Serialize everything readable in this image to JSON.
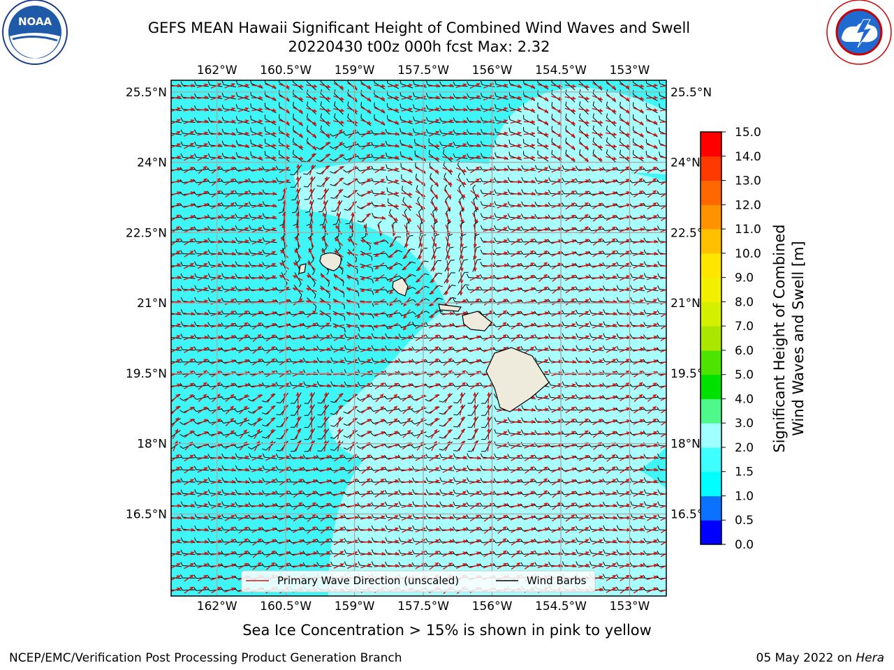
{
  "title_line1": "GEFS MEAN Hawaii Significant Height of Combined Wind Waves and Swell",
  "title_line2": "20220430 t00z 000h fcst   Max: 2.32",
  "lon_ticks": [
    "162°W",
    "160.5°W",
    "159°W",
    "157.5°W",
    "156°W",
    "154.5°W",
    "153°W"
  ],
  "lat_ticks": [
    "25.5°N",
    "24°N",
    "22.5°N",
    "21°N",
    "19.5°N",
    "18°N",
    "16.5°N"
  ],
  "lon_values": [
    -162,
    -160.5,
    -159,
    -157.5,
    -156,
    -154.5,
    -153
  ],
  "lat_values": [
    25.5,
    24,
    22.5,
    21,
    19.5,
    18,
    16.5
  ],
  "map_extent": {
    "lon": [
      -163,
      -152.2
    ],
    "lat": [
      14.75,
      25.75
    ]
  },
  "legend": {
    "wave_dir_label": "Primary Wave Direction (unscaled)",
    "wave_dir_color": "#dd1111",
    "wind_barbs_label": "Wind Barbs",
    "wind_barbs_color": "#000000"
  },
  "colorbar": {
    "label_line1": "Significant Height of Combined",
    "label_line2": "Wind Waves and Swell [m]",
    "levels": [
      0.0,
      0.5,
      1.0,
      1.5,
      2.0,
      3.0,
      4.0,
      5.0,
      6.0,
      7.0,
      8.0,
      9.0,
      10.0,
      11.0,
      12.0,
      13.0,
      14.0,
      15.0
    ],
    "level_labels": [
      "0.0",
      "0.5",
      "1.0",
      "1.5",
      "2.0",
      "3.0",
      "4.0",
      "5.0",
      "6.0",
      "7.0",
      "8.0",
      "9.0",
      "10.0",
      "11.0",
      "12.0",
      "13.0",
      "14.0",
      "15.0"
    ],
    "colors": [
      "#0000ff",
      "#0a72ff",
      "#00ffff",
      "#40ffff",
      "#a0ffff",
      "#4ff88a",
      "#00e100",
      "#4ee400",
      "#aae600",
      "#d4f000",
      "#f2f000",
      "#ffe600",
      "#ffc000",
      "#ff9200",
      "#ff6800",
      "#ff3a00",
      "#ff0000"
    ]
  },
  "sea_colors": {
    "base": "#40f5f5",
    "lighter": "#a8fdfd",
    "land": "#eeeadc"
  },
  "sea_ice_note": "Sea Ice Concentration > 15% is shown in pink to yellow",
  "footer_left": "NCEP/EMC/Verification Post Processing Product Generation Branch",
  "footer_right_date": "05 May 2022 on ",
  "footer_right_host": "Hera",
  "logos": {
    "left": "NOAA",
    "right": "NATIONAL WEATHER SERVICE"
  }
}
